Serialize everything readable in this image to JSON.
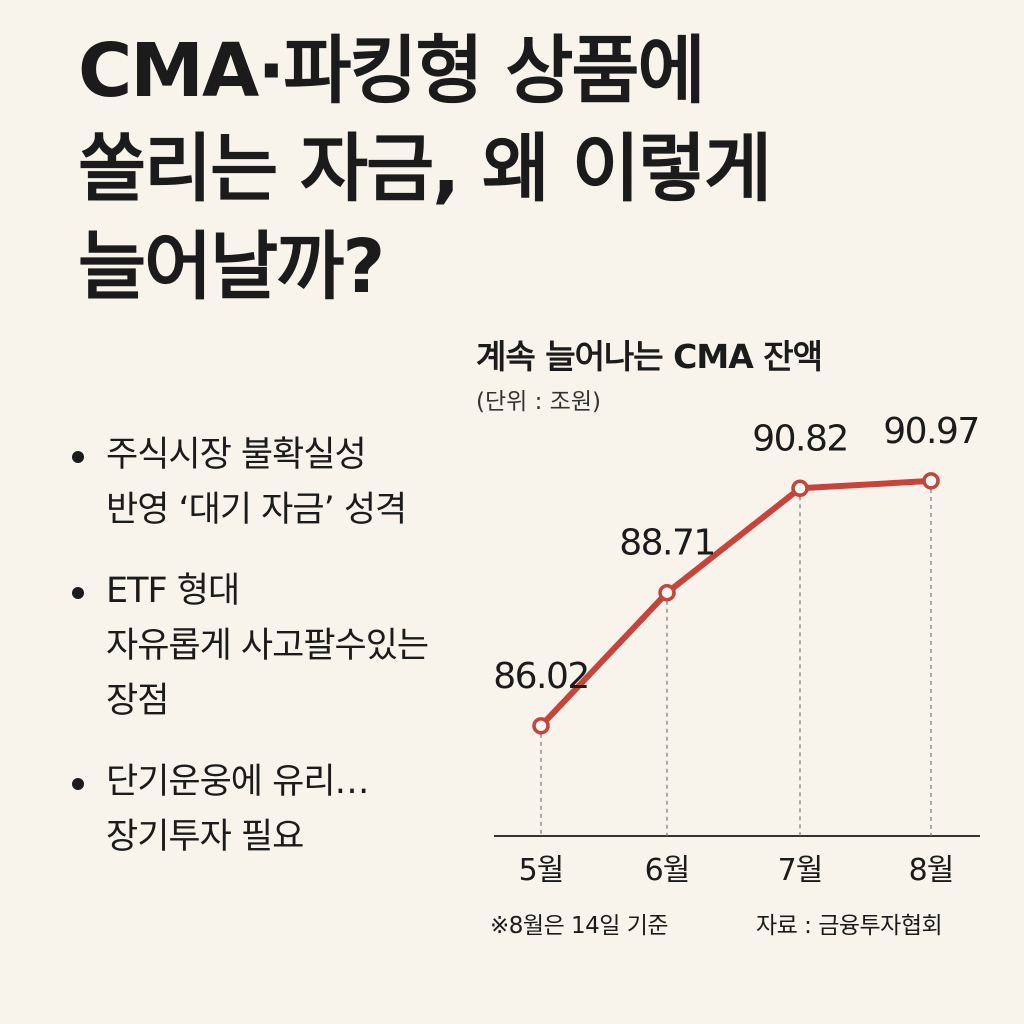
{
  "headline": "CMA·파킹형 상품에\n쏠리는 자금, 왜 이렇게\n늘어날까?",
  "bullets": [
    "주식시장 불확실성\n반영 ‘대기 자금’ 성격",
    "ETF 형대\n자유롭게 사고팔수있는\n장점",
    "단기운웅에 유리…\n장기투자 필요"
  ],
  "chart_data": {
    "type": "line",
    "title": "계속 늘어나는 CMA 잔액",
    "unit_label": "(단위 : 조원)",
    "categories": [
      "5월",
      "6월",
      "7월",
      "8월"
    ],
    "values": [
      86.02,
      88.71,
      90.82,
      90.97
    ],
    "value_labels": [
      "86.02",
      "88.71",
      "90.82",
      "90.97"
    ],
    "ylim": [
      84.4,
      92.2
    ],
    "grid": false,
    "line_color": "#c8433a"
  },
  "footnote": "※8월은 14일 기준",
  "source": "자료 : 금융투자협회"
}
